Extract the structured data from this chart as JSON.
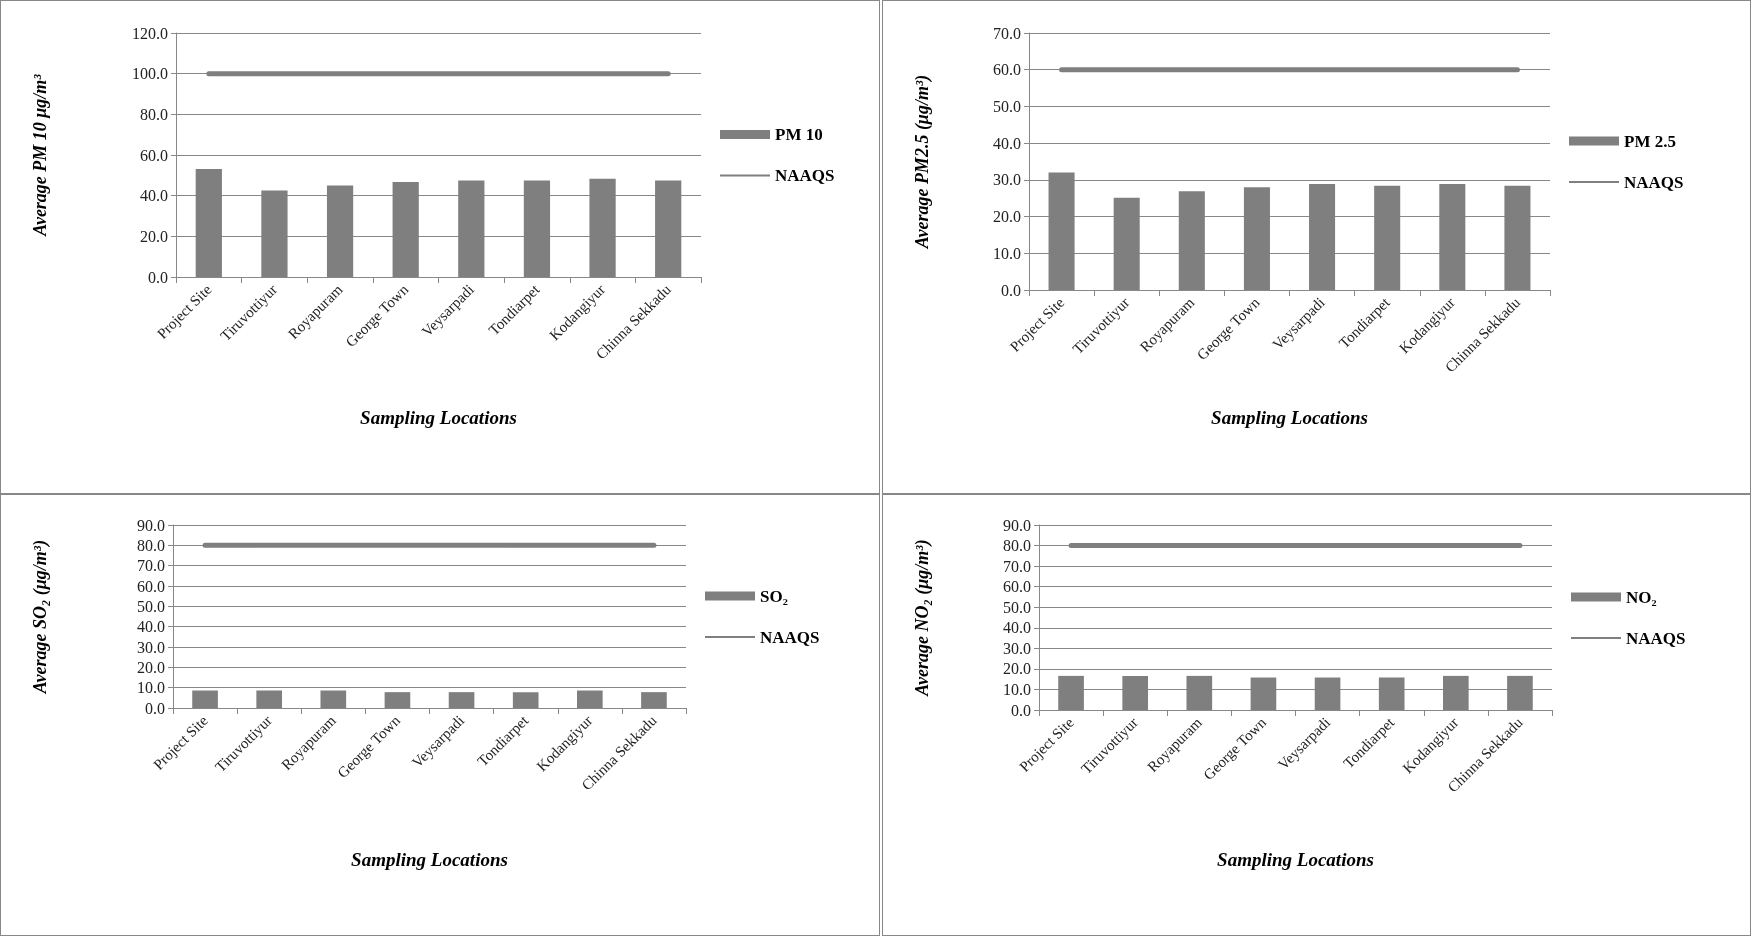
{
  "chart_data": [
    {
      "type": "bar",
      "xlabel": "Sampling Locations",
      "ylabel": "Average PM 10 μg/m³",
      "categories": [
        "Project Site",
        "Tiruvottiyur",
        "Royapuram",
        "George Town",
        "Veysarpadi",
        "Tondiarpet",
        "Kodangiyur",
        "Chinna Sekkadu"
      ],
      "series": [
        {
          "name": "PM 10",
          "color": "#7f7f7f",
          "values": [
            53.1,
            42.5,
            45.0,
            46.7,
            47.5,
            47.5,
            48.3,
            47.5
          ]
        },
        {
          "name": "NAAQS",
          "type": "line",
          "color": "#7f7f7f",
          "values": [
            100,
            100,
            100,
            100,
            100,
            100,
            100,
            100
          ]
        }
      ],
      "ylim": [
        0,
        120
      ],
      "yticks": [
        {
          "value": 0,
          "label": "0.0"
        },
        {
          "value": 20,
          "label": "20.0"
        },
        {
          "value": 40,
          "label": "40.0"
        },
        {
          "value": 60,
          "label": "60.0"
        },
        {
          "value": 80,
          "label": "80.0"
        },
        {
          "value": 100,
          "label": "100.0"
        },
        {
          "value": 120,
          "label": "120.0"
        }
      ],
      "grid": "y",
      "legend": "right"
    },
    {
      "type": "bar",
      "xlabel": "Sampling Locations",
      "ylabel": "Average PM2.5 (μg/m³)",
      "categories": [
        "Project Site",
        "Tiruvottiyur",
        "Royapuram",
        "George Town",
        "Veysarpadi",
        "Tondiarpet",
        "Kodangiyur",
        "Chinna Sekkadu"
      ],
      "series": [
        {
          "name": "PM 2.5",
          "color": "#7f7f7f",
          "values": [
            32.0,
            25.1,
            26.9,
            28.0,
            28.9,
            28.4,
            28.9,
            28.4
          ]
        },
        {
          "name": "NAAQS",
          "type": "line",
          "color": "#7f7f7f",
          "values": [
            60,
            60,
            60,
            60,
            60,
            60,
            60,
            60
          ]
        }
      ],
      "ylim": [
        0,
        70
      ],
      "yticks": [
        {
          "value": 0,
          "label": "0.0"
        },
        {
          "value": 10,
          "label": "10.0"
        },
        {
          "value": 20,
          "label": "20.0"
        },
        {
          "value": 30,
          "label": "30.0"
        },
        {
          "value": 40,
          "label": "40.0"
        },
        {
          "value": 50,
          "label": "50.0"
        },
        {
          "value": 60,
          "label": "60.0"
        },
        {
          "value": 70,
          "label": "70.0"
        }
      ],
      "grid": "y",
      "legend": "right"
    },
    {
      "type": "bar",
      "xlabel": "Sampling Locations",
      "ylabel": "Average SO₂ (μg/m³)",
      "categories": [
        "Project Site",
        "Tiruvottiyur",
        "Royapuram",
        "George Town",
        "Veysarpadi",
        "Tondiarpet",
        "Kodangiyur",
        "Chinna Sekkadu"
      ],
      "series": [
        {
          "name": "SO₂",
          "color": "#7f7f7f",
          "values": [
            8.6,
            8.6,
            8.6,
            7.8,
            7.8,
            7.8,
            8.6,
            7.8
          ]
        },
        {
          "name": "NAAQS",
          "type": "line",
          "color": "#7f7f7f",
          "values": [
            80,
            80,
            80,
            80,
            80,
            80,
            80,
            80
          ]
        }
      ],
      "ylim": [
        0,
        90
      ],
      "yticks": [
        {
          "value": 0,
          "label": "0.0"
        },
        {
          "value": 10,
          "label": "10.0"
        },
        {
          "value": 20,
          "label": "20.0"
        },
        {
          "value": 30,
          "label": "30.0"
        },
        {
          "value": 40,
          "label": "40.0"
        },
        {
          "value": 50,
          "label": "50.0"
        },
        {
          "value": 60,
          "label": "60.0"
        },
        {
          "value": 70,
          "label": "70.0"
        },
        {
          "value": 80,
          "label": "80.0"
        },
        {
          "value": 90,
          "label": "90.0"
        }
      ],
      "grid": "y",
      "legend": "right"
    },
    {
      "type": "bar",
      "xlabel": "Sampling Locations",
      "ylabel": "Average NO₂ (μg/m³)",
      "categories": [
        "Project Site",
        "Tiruvottiyur",
        "Royapuram",
        "George Town",
        "Veysarpadi",
        "Tondiarpet",
        "Kodangiyur",
        "Chinna Sekkadu"
      ],
      "series": [
        {
          "name": "NO₂",
          "color": "#7f7f7f",
          "values": [
            16.6,
            16.6,
            16.6,
            15.8,
            15.8,
            15.8,
            16.6,
            16.6
          ]
        },
        {
          "name": "NAAQS",
          "type": "line",
          "color": "#7f7f7f",
          "values": [
            80,
            80,
            80,
            80,
            80,
            80,
            80,
            80
          ]
        }
      ],
      "ylim": [
        0,
        90
      ],
      "yticks": [
        {
          "value": 0,
          "label": "0.0"
        },
        {
          "value": 10,
          "label": "10.0"
        },
        {
          "value": 20,
          "label": "20.0"
        },
        {
          "value": 30,
          "label": "30.0"
        },
        {
          "value": 40,
          "label": "40.0"
        },
        {
          "value": 50,
          "label": "50.0"
        },
        {
          "value": 60,
          "label": "60.0"
        },
        {
          "value": 70,
          "label": "70.0"
        },
        {
          "value": 80,
          "label": "80.0"
        },
        {
          "value": 90,
          "label": "90.0"
        }
      ],
      "grid": "y",
      "legend": "right"
    }
  ]
}
